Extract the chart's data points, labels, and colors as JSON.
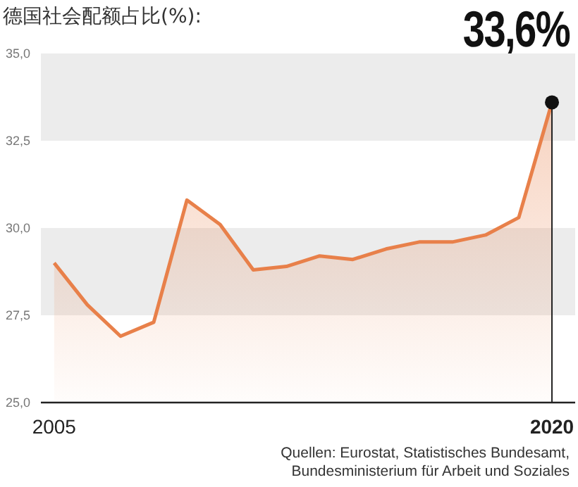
{
  "chart_data": {
    "type": "area",
    "title": "德国社会配额占比(%):",
    "x": [
      2005,
      2006,
      2007,
      2008,
      2009,
      2010,
      2011,
      2012,
      2013,
      2014,
      2015,
      2016,
      2017,
      2018,
      2019,
      2020
    ],
    "series": [
      {
        "color": "#e8804a",
        "values": [
          29.0,
          27.8,
          26.9,
          27.3,
          30.8,
          30.1,
          28.8,
          28.9,
          29.2,
          29.1,
          29.4,
          29.6,
          29.6,
          29.8,
          30.3,
          33.6
        ]
      }
    ],
    "xlim": [
      2004.6,
      2020.7
    ],
    "xticks": [
      2005,
      2020
    ],
    "ylim": [
      25,
      35
    ],
    "yticks": [
      {
        "value": 25,
        "label": "25,0"
      },
      {
        "value": 27.5,
        "label": "27,5"
      },
      {
        "value": 30,
        "label": "30,0"
      },
      {
        "value": 32.5,
        "label": "32,5"
      },
      {
        "value": 35,
        "label": "35,0"
      }
    ],
    "bands": [
      {
        "axis": "y",
        "from": 27.5,
        "to": 30,
        "color": "#ececec"
      },
      {
        "axis": "y",
        "from": 32.5,
        "to": 35,
        "color": "#ececec"
      }
    ],
    "ref_lines": [
      {
        "axis": "x",
        "value": 2020,
        "color": "#222222"
      }
    ],
    "grid": false,
    "legend": false,
    "annotations": [
      {
        "text": "33,6%",
        "x": 2020,
        "y": 33.6
      },
      "Quellen: Eurostat, Statistisches Bundesamt, Bundesministerium für Arbeit und Soziales"
    ]
  }
}
